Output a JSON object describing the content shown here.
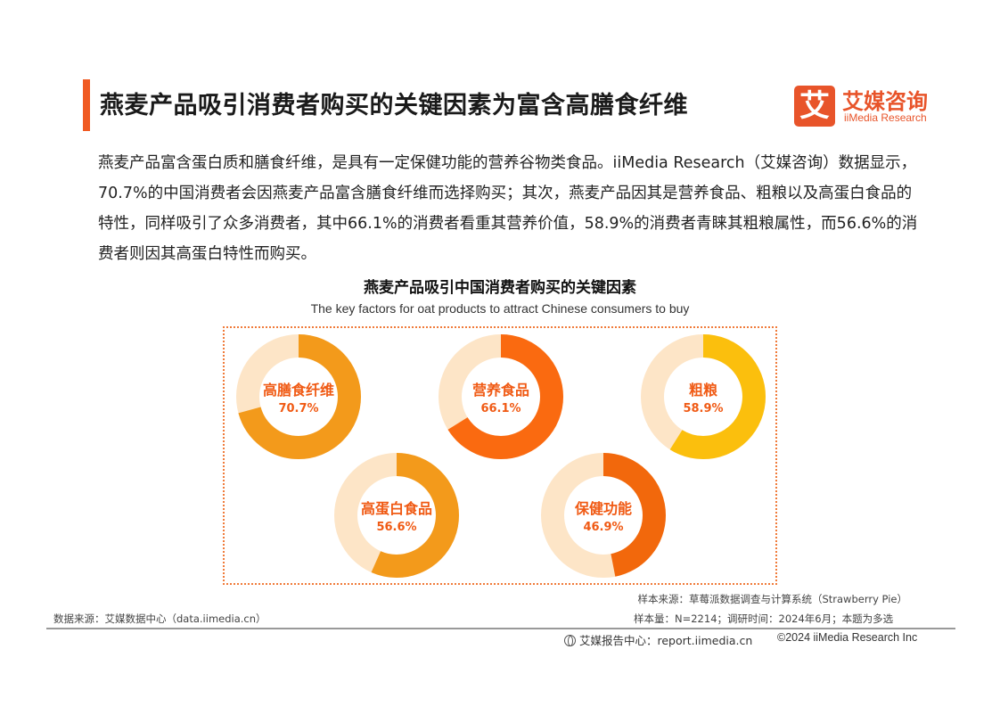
{
  "header": {
    "title": "燕麦产品吸引消费者购买的关键因素为富含高膳食纤维",
    "logo_mark": "艾",
    "logo_cn": "艾媒咨询",
    "logo_en": "iiMedia Research"
  },
  "description": "燕麦产品富含蛋白质和膳食纤维，是具有一定保健功能的营养谷物类食品。iiMedia Research（艾媒咨询）数据显示，70.7%的中国消费者会因燕麦产品富含膳食纤维而选择购买；其次，燕麦产品因其是营养食品、粗粮以及高蛋白食品的特性，同样吸引了众多消费者，其中66.1%的消费者看重其营养价值，58.9%的消费者青睐其粗粮属性，而56.6%的消费者则因其高蛋白特性而购买。",
  "chart_data": {
    "type": "pie",
    "subtype": "donut",
    "title": "燕麦产品吸引中国消费者购买的关键因素",
    "subtitle": "The key factors for oat products to attract Chinese consumers to buy",
    "unit": "%",
    "items": [
      {
        "label": "高膳食纤维",
        "value": 70.7,
        "value_label": "70.7%",
        "color": "#f39a1b"
      },
      {
        "label": "营养食品",
        "value": 66.1,
        "value_label": "66.1%",
        "color": "#fa6a10"
      },
      {
        "label": "粗粮",
        "value": 58.9,
        "value_label": "58.9%",
        "color": "#fbbf0d"
      },
      {
        "label": "高蛋白食品",
        "value": 56.6,
        "value_label": "56.6%",
        "color": "#f39a1b"
      },
      {
        "label": "保健功能",
        "value": 46.9,
        "value_label": "46.9%",
        "color": "#f2680c"
      }
    ],
    "remainder_color": "#fde5c7",
    "label_color": "#f05a14"
  },
  "footnotes": {
    "sample_source": "样本来源：草莓派数据调查与计算系统（Strawberry Pie）",
    "data_source": "数据来源：艾媒数据中心（data.iimedia.cn）",
    "sample_size": "样本量：N=2214；调研时间：2024年6月；本题为多选"
  },
  "footer": {
    "center_label": "艾媒报告中心：report.iimedia.cn",
    "copyright": "©2024  iiMedia Research Inc"
  }
}
